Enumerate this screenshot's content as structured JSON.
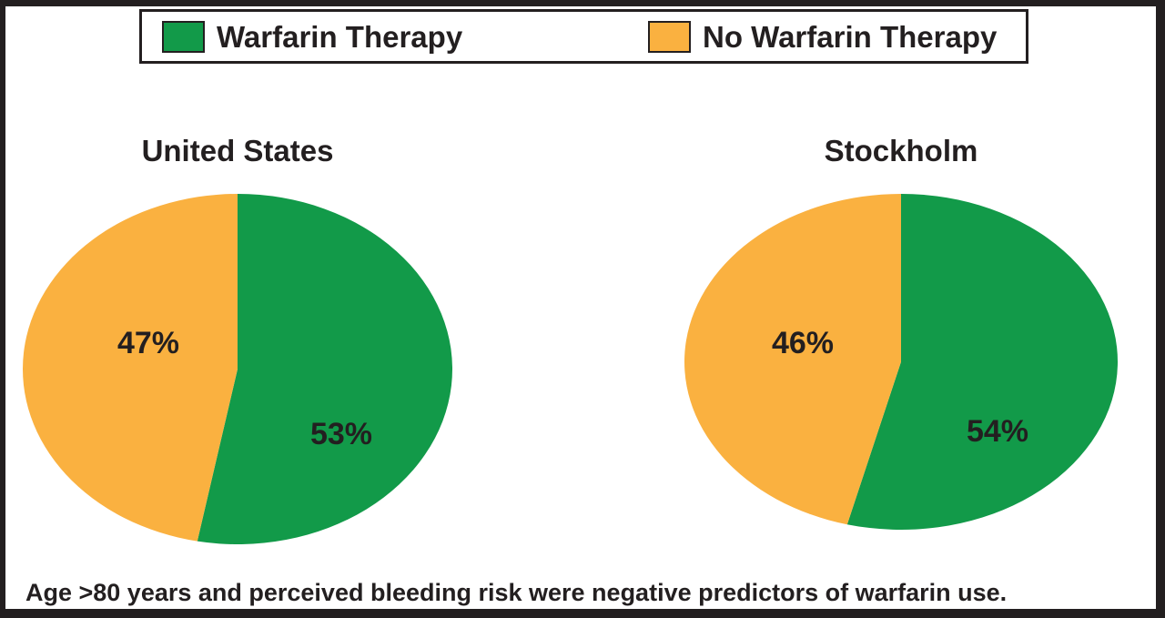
{
  "legend": {
    "items": [
      {
        "label": "Warfarin Therapy",
        "color": "#129A49"
      },
      {
        "label": "No Warfarin Therapy",
        "color": "#FAB140"
      }
    ]
  },
  "caption": "Age >80 years and perceived bleeding risk were negative predictors of warfarin use.",
  "colors": {
    "warfarin_green": "#129A49",
    "no_warfarin_orange": "#FAB140",
    "text_black": "#231F20"
  },
  "chart_data": {
    "type": "pie",
    "legend_position": "top",
    "charts": [
      {
        "title": "United States",
        "slices": [
          {
            "name": "Warfarin Therapy",
            "value": 53,
            "label": "53%",
            "color": "#129A49"
          },
          {
            "name": "No Warfarin Therapy",
            "value": 47,
            "label": "47%",
            "color": "#FAB140"
          }
        ]
      },
      {
        "title": "Stockholm",
        "slices": [
          {
            "name": "Warfarin Therapy",
            "value": 54,
            "label": "54%",
            "color": "#129A49"
          },
          {
            "name": "No Warfarin Therapy",
            "value": 46,
            "label": "46%",
            "color": "#FAB140"
          }
        ]
      }
    ]
  }
}
